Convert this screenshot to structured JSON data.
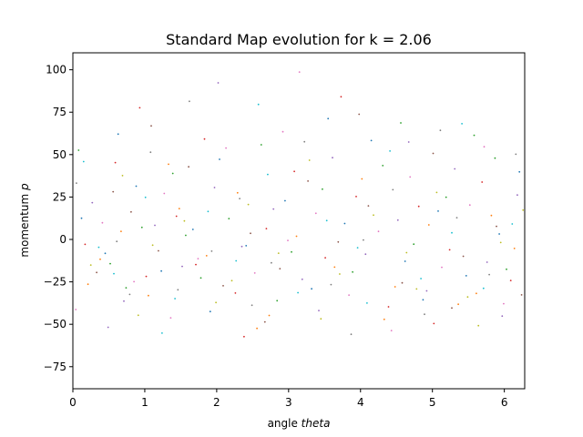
{
  "chart_data": {
    "type": "scatter",
    "title": "Standard Map evolution for k = 2.06",
    "xlabel_prefix": "angle ",
    "xlabel_var": "theta",
    "ylabel_prefix": "momentum ",
    "ylabel_var": "p",
    "xlim": [
      0,
      6.2832
    ],
    "ylim": [
      -88,
      110
    ],
    "xticks": [
      0,
      1,
      2,
      3,
      4,
      5,
      6
    ],
    "yticks": [
      -75,
      -50,
      -25,
      0,
      25,
      50,
      75,
      100
    ],
    "grid": false,
    "legend": "none",
    "series": [
      {
        "color": "#1f77b4",
        "points": [
          [
            0.12,
            12.5
          ],
          [
            0.45,
            -8.2
          ],
          [
            0.88,
            31.4
          ],
          [
            1.23,
            -18.6
          ],
          [
            1.67,
            5.9
          ],
          [
            2.04,
            47.2
          ],
          [
            2.41,
            -3.7
          ],
          [
            2.95,
            22.8
          ],
          [
            3.32,
            -29.1
          ],
          [
            3.78,
            9.4
          ],
          [
            4.15,
            58.3
          ],
          [
            4.62,
            -12.9
          ],
          [
            5.08,
            16.7
          ],
          [
            5.47,
            -21.4
          ],
          [
            5.93,
            3.2
          ],
          [
            6.21,
            39.8
          ],
          [
            0.63,
            62.1
          ],
          [
            1.91,
            -42.5
          ],
          [
            3.55,
            71.2
          ],
          [
            4.87,
            -35.6
          ]
        ]
      },
      {
        "color": "#ff7f0e",
        "points": [
          [
            0.21,
            -26.4
          ],
          [
            0.67,
            4.8
          ],
          [
            1.05,
            -33.1
          ],
          [
            1.48,
            18.2
          ],
          [
            1.86,
            -9.6
          ],
          [
            2.29,
            27.5
          ],
          [
            2.73,
            -44.8
          ],
          [
            3.11,
            1.9
          ],
          [
            3.64,
            -16.3
          ],
          [
            4.02,
            35.7
          ],
          [
            4.48,
            -27.9
          ],
          [
            4.95,
            8.6
          ],
          [
            5.36,
            -38.2
          ],
          [
            5.82,
            14.1
          ],
          [
            6.14,
            -5.3
          ],
          [
            0.38,
            -11.7
          ],
          [
            2.56,
            -52.4
          ],
          [
            4.33,
            -47.1
          ],
          [
            5.61,
            -31.8
          ],
          [
            1.33,
            44.3
          ]
        ]
      },
      {
        "color": "#2ca02c",
        "points": [
          [
            0.08,
            52.6
          ],
          [
            0.52,
            -14.3
          ],
          [
            0.96,
            7.1
          ],
          [
            1.39,
            38.9
          ],
          [
            1.78,
            -22.7
          ],
          [
            2.17,
            12.3
          ],
          [
            2.62,
            55.8
          ],
          [
            3.04,
            -7.4
          ],
          [
            3.47,
            29.6
          ],
          [
            3.89,
            -19.2
          ],
          [
            4.31,
            43.5
          ],
          [
            4.74,
            -2.8
          ],
          [
            5.19,
            24.9
          ],
          [
            5.58,
            61.4
          ],
          [
            6.03,
            -17.6
          ],
          [
            0.74,
            -28.5
          ],
          [
            2.84,
            -36.1
          ],
          [
            4.56,
            68.7
          ],
          [
            5.87,
            47.9
          ],
          [
            1.57,
            2.4
          ]
        ]
      },
      {
        "color": "#d62728",
        "points": [
          [
            0.17,
            -2.9
          ],
          [
            0.59,
            45.3
          ],
          [
            1.02,
            -21.8
          ],
          [
            1.44,
            13.7
          ],
          [
            1.83,
            59.2
          ],
          [
            2.26,
            -31.6
          ],
          [
            2.69,
            6.4
          ],
          [
            3.08,
            40.1
          ],
          [
            3.51,
            -10.8
          ],
          [
            3.94,
            25.3
          ],
          [
            4.39,
            -39.7
          ],
          [
            4.81,
            19.5
          ],
          [
            5.24,
            -6.1
          ],
          [
            5.69,
            33.8
          ],
          [
            6.09,
            -24.2
          ],
          [
            0.93,
            77.6
          ],
          [
            2.38,
            -57.3
          ],
          [
            3.73,
            84.1
          ],
          [
            5.02,
            -49.6
          ],
          [
            1.71,
            -14.8
          ]
        ]
      },
      {
        "color": "#9467bd",
        "points": [
          [
            0.27,
            21.7
          ],
          [
            0.71,
            -36.4
          ],
          [
            1.14,
            8.3
          ],
          [
            1.52,
            -15.9
          ],
          [
            1.97,
            30.6
          ],
          [
            2.35,
            -4.2
          ],
          [
            2.79,
            17.9
          ],
          [
            3.19,
            -23.5
          ],
          [
            3.61,
            48.2
          ],
          [
            4.07,
            -8.7
          ],
          [
            4.52,
            11.4
          ],
          [
            4.92,
            -30.3
          ],
          [
            5.31,
            41.6
          ],
          [
            5.76,
            -13.4
          ],
          [
            6.18,
            26.2
          ],
          [
            0.49,
            -51.8
          ],
          [
            2.02,
            92.3
          ],
          [
            3.42,
            -41.9
          ],
          [
            4.67,
            57.4
          ],
          [
            5.97,
            -45.2
          ]
        ]
      },
      {
        "color": "#8c564b",
        "points": [
          [
            0.33,
            -19.5
          ],
          [
            0.81,
            16.2
          ],
          [
            1.19,
            -6.7
          ],
          [
            1.61,
            42.8
          ],
          [
            2.09,
            -27.3
          ],
          [
            2.47,
            3.6
          ],
          [
            2.88,
            -17.2
          ],
          [
            3.27,
            34.4
          ],
          [
            3.69,
            -1.5
          ],
          [
            4.11,
            19.8
          ],
          [
            4.58,
            -25.6
          ],
          [
            5.01,
            50.7
          ],
          [
            5.43,
            -9.9
          ],
          [
            5.89,
            7.7
          ],
          [
            6.24,
            -32.7
          ],
          [
            1.09,
            66.9
          ],
          [
            2.67,
            -48.6
          ],
          [
            3.98,
            73.8
          ],
          [
            5.27,
            -40.4
          ],
          [
            0.56,
            28.1
          ]
        ]
      },
      {
        "color": "#e377c2",
        "points": [
          [
            0.41,
            9.8
          ],
          [
            0.85,
            -24.9
          ],
          [
            1.27,
            27.1
          ],
          [
            1.74,
            -11.3
          ],
          [
            2.13,
            53.9
          ],
          [
            2.53,
            -19.8
          ],
          [
            2.99,
            -0.6
          ],
          [
            3.38,
            15.4
          ],
          [
            3.84,
            -32.8
          ],
          [
            4.25,
            4.7
          ],
          [
            4.69,
            36.8
          ],
          [
            5.13,
            -16.4
          ],
          [
            5.52,
            20.3
          ],
          [
            5.99,
            -37.9
          ],
          [
            0.04,
            -41.3
          ],
          [
            1.36,
            -46.2
          ],
          [
            2.92,
            63.5
          ],
          [
            4.43,
            -53.7
          ],
          [
            5.72,
            54.6
          ],
          [
            3.15,
            98.7
          ]
        ]
      },
      {
        "color": "#7f7f7f",
        "points": [
          [
            0.05,
            33.2
          ],
          [
            0.61,
            -1.2
          ],
          [
            1.08,
            51.4
          ],
          [
            1.46,
            -29.7
          ],
          [
            1.93,
            -6.9
          ],
          [
            2.32,
            24.1
          ],
          [
            2.76,
            -13.8
          ],
          [
            3.22,
            57.6
          ],
          [
            3.59,
            -26.6
          ],
          [
            4.04,
            -0.3
          ],
          [
            4.45,
            29.3
          ],
          [
            4.89,
            -44.1
          ],
          [
            5.34,
            12.8
          ],
          [
            5.79,
            -20.7
          ],
          [
            6.16,
            50.2
          ],
          [
            1.62,
            81.4
          ],
          [
            2.49,
            -38.8
          ],
          [
            3.87,
            -55.9
          ],
          [
            5.11,
            64.3
          ],
          [
            0.79,
            -32.4
          ]
        ]
      },
      {
        "color": "#bcbd22",
        "points": [
          [
            0.25,
            -15.1
          ],
          [
            0.69,
            37.6
          ],
          [
            1.11,
            -3.4
          ],
          [
            1.55,
            10.9
          ],
          [
            1.99,
            -37.2
          ],
          [
            2.44,
            20.6
          ],
          [
            2.86,
            -8.1
          ],
          [
            3.29,
            46.7
          ],
          [
            3.71,
            -20.4
          ],
          [
            4.18,
            14.3
          ],
          [
            4.64,
            -7.8
          ],
          [
            5.06,
            27.7
          ],
          [
            5.49,
            -33.9
          ],
          [
            5.95,
            -1.8
          ],
          [
            6.26,
            17.3
          ],
          [
            0.91,
            -44.7
          ],
          [
            2.21,
            -24.3
          ],
          [
            3.45,
            -46.8
          ],
          [
            4.78,
            -29.2
          ],
          [
            5.64,
            -50.8
          ]
        ]
      },
      {
        "color": "#17becf",
        "points": [
          [
            0.15,
            45.9
          ],
          [
            0.57,
            -20.2
          ],
          [
            1.01,
            24.8
          ],
          [
            1.42,
            -34.9
          ],
          [
            1.88,
            16.5
          ],
          [
            2.27,
            -12.6
          ],
          [
            2.71,
            38.3
          ],
          [
            3.13,
            -31.4
          ],
          [
            3.53,
            11.1
          ],
          [
            3.96,
            -4.9
          ],
          [
            4.41,
            52.1
          ],
          [
            4.84,
            -23.1
          ],
          [
            5.27,
            3.9
          ],
          [
            5.71,
            -28.8
          ],
          [
            6.11,
            9.1
          ],
          [
            1.24,
            -55.2
          ],
          [
            2.58,
            79.6
          ],
          [
            4.09,
            -37.5
          ],
          [
            5.41,
            68.2
          ],
          [
            0.36,
            -4.6
          ]
        ]
      }
    ]
  }
}
